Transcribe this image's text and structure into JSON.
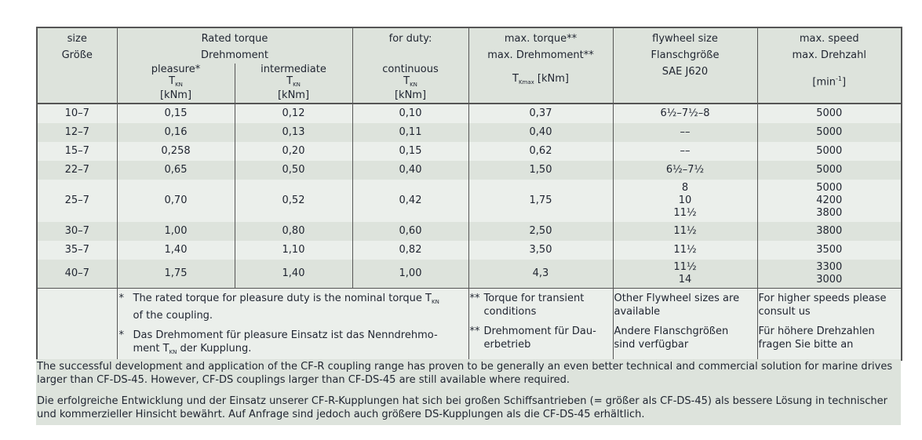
{
  "header": {
    "size": [
      "size",
      "Größe"
    ],
    "rated_torque": [
      "Rated torque",
      "Drehmoment"
    ],
    "for_duty": "for duty:",
    "pleasure": "pleasure*",
    "intermediate": "intermediate",
    "continuous": "continuous",
    "t": "T",
    "kn": "KN",
    "unit": "[kNm]",
    "max_torque": [
      "max. torque**",
      "max. Drehmoment**"
    ],
    "kmax": "Kmax",
    "max_torque_unit": " [kNm]",
    "flywheel": [
      "flywheel size",
      "Flanschgröße",
      "SAE J620"
    ],
    "max_speed": [
      "max. speed",
      "max. Drehzahl"
    ],
    "speed_unit_pre": "[min",
    "speed_unit_sup": "-1",
    "speed_unit_post": "]"
  },
  "rows": [
    {
      "size": "10–7",
      "pleasure": "0,15",
      "intermediate": "0,12",
      "continuous": "0,10",
      "max_torque": "0,37",
      "flywheel": [
        "6½–7½–8"
      ],
      "speed": [
        "5000"
      ]
    },
    {
      "size": "12–7",
      "pleasure": "0,16",
      "intermediate": "0,13",
      "continuous": "0,11",
      "max_torque": "0,40",
      "flywheel": [
        "––"
      ],
      "speed": [
        "5000"
      ]
    },
    {
      "size": "15–7",
      "pleasure": "0,258",
      "intermediate": "0,20",
      "continuous": "0,15",
      "max_torque": "0,62",
      "flywheel": [
        "––"
      ],
      "speed": [
        "5000"
      ]
    },
    {
      "size": "22–7",
      "pleasure": "0,65",
      "intermediate": "0,50",
      "continuous": "0,40",
      "max_torque": "1,50",
      "flywheel": [
        "6½–7½"
      ],
      "speed": [
        "5000"
      ]
    },
    {
      "size": "25–7",
      "pleasure": "0,70",
      "intermediate": "0,52",
      "continuous": "0,42",
      "max_torque": "1,75",
      "flywheel": [
        "8",
        "10",
        "11½"
      ],
      "speed": [
        "5000",
        "4200",
        "3800"
      ]
    },
    {
      "size": "30–7",
      "pleasure": "1,00",
      "intermediate": "0,80",
      "continuous": "0,60",
      "max_torque": "2,50",
      "flywheel": [
        "11½"
      ],
      "speed": [
        "3800"
      ]
    },
    {
      "size": "35–7",
      "pleasure": "1,40",
      "intermediate": "1,10",
      "continuous": "0,82",
      "max_torque": "3,50",
      "flywheel": [
        "11½"
      ],
      "speed": [
        "3500"
      ]
    },
    {
      "size": "40–7",
      "pleasure": "1,75",
      "intermediate": "1,40",
      "continuous": "1,00",
      "max_torque": "4,3",
      "flywheel": [
        "11½",
        "14"
      ],
      "speed": [
        "3300",
        "3000"
      ]
    }
  ],
  "footnotes": {
    "star": "*",
    "dstar": "**",
    "pleasure_en": "The rated torque for pleasure duty is the nominal torque T",
    "pleasure_en_2": "of the coupling.",
    "pleasure_de": "Das Drehmoment für pleasure Einsatz ist das Nenndrehmo-",
    "pleasure_de_2a": "ment T",
    "pleasure_de_2b": " der Kupplung.",
    "kn": "KN",
    "max_en": [
      "Torque for transient",
      "conditions"
    ],
    "max_de": [
      "Drehmoment für Dau-",
      "erbetrieb"
    ],
    "fly_en": [
      "Other Flywheel sizes are",
      "available"
    ],
    "fly_de": [
      "Andere Flanschgrößen",
      "sind verfügbar"
    ],
    "speed_en": [
      "For higher speeds please",
      "consult us"
    ],
    "speed_de": [
      "Für höhere Drehzahlen",
      "fragen Sie bitte an"
    ]
  },
  "paragraphs": [
    "The successful development and application of the CF-R coupling range has proven to be generally an even better technical and commercial solution for marine drives larger than CF-DS-45. However, CF-DS couplings larger than CF-DS-45 are still available where required.",
    "Die erfolgreiche Entwicklung und der Einsatz unserer CF-R-Kupplungen hat sich bei großen Schiffsantrieben (= größer als CF-DS-45) als bessere Lösung in technischer und kommerzieller Hinsicht bewährt. Auf Anfrage sind jedoch auch größere DS-Kupplungen als die CF-DS-45 erhältlich."
  ],
  "colors": {
    "header_bg": "#dde3dc",
    "row_light": "#ebefeb",
    "row_dark": "#dde3dc",
    "border": "#555555",
    "text": "#1f2430"
  }
}
